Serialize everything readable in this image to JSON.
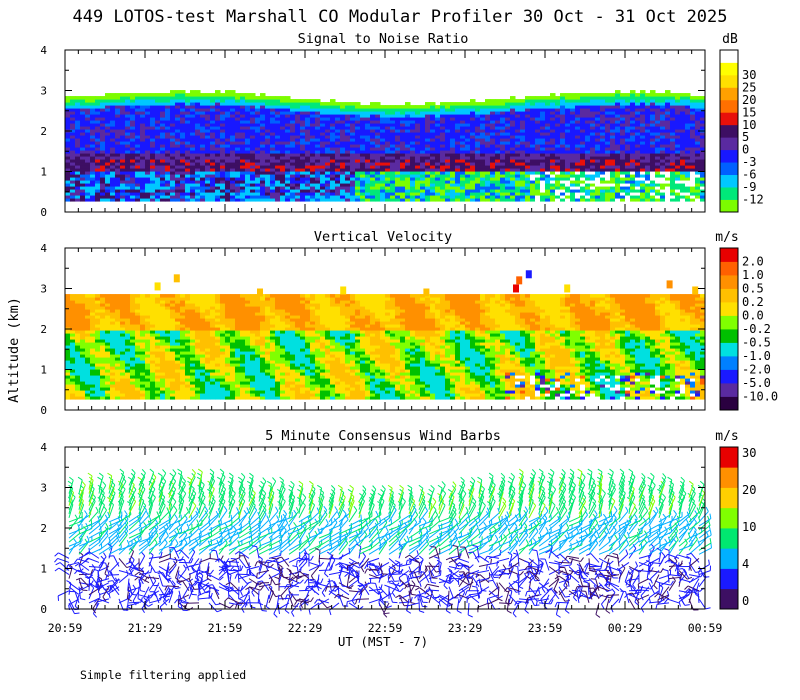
{
  "title": "449 LOTOS-test Marshall CO Modular Profiler 30 Oct - 31 Oct 2025",
  "footnote": "Simple filtering applied",
  "ylabel": "Altitude (km)",
  "xlabel": "UT  (MST - 7)",
  "time_ticks": [
    "20:59",
    "21:29",
    "21:59",
    "22:29",
    "22:59",
    "23:29",
    "23:59",
    "00:29",
    "00:59"
  ],
  "panels": [
    {
      "key": "snr",
      "title": "Signal to Noise Ratio",
      "unit": "dB",
      "yticks": [
        "0",
        "1",
        "2",
        "3",
        "4"
      ],
      "colorbar": {
        "colors": [
          "#7cfc00",
          "#00e87a",
          "#00c8ff",
          "#0060ff",
          "#1818ff",
          "#5a2aa0",
          "#3d0f63",
          "#e8100a",
          "#ff7000",
          "#ffa000",
          "#ffe000",
          "#ffff00",
          "#ffffff"
        ],
        "labels": [
          "-12",
          "-9",
          "-6",
          "-3",
          "0",
          "5",
          "10",
          "15",
          "20",
          "25",
          "30"
        ]
      }
    },
    {
      "key": "vv",
      "title": "Vertical Velocity",
      "unit": "m/s",
      "yticks": [
        "0",
        "1",
        "2",
        "3",
        "4"
      ],
      "colorbar": {
        "colors": [
          "#2a0040",
          "#5a2aa0",
          "#1a1aff",
          "#0080ff",
          "#00e0e0",
          "#00c000",
          "#80ff00",
          "#ffe000",
          "#ffc000",
          "#ff9000",
          "#ff6000",
          "#e80000"
        ],
        "labels": [
          "-10.0",
          "-5.0",
          "-2.0",
          "-1.0",
          "-0.5",
          "-0.2",
          "0.0",
          "0.2",
          "0.5",
          "1.0",
          "2.0"
        ]
      }
    },
    {
      "key": "wind",
      "title": "5 Minute Consensus Wind Barbs",
      "unit": "m/s",
      "yticks": [
        "0",
        "1",
        "2",
        "3",
        "4"
      ],
      "colorbar": {
        "colors": [
          "#3d0f63",
          "#1a1aff",
          "#00b0ff",
          "#00e870",
          "#80ff00",
          "#ffd000",
          "#ff9000",
          "#e80000"
        ],
        "labels": [
          "0",
          "4",
          "10",
          "20",
          "30"
        ]
      }
    }
  ],
  "chart_data": [
    {
      "type": "heatmap",
      "title": "Signal to Noise Ratio",
      "x_range": [
        "20:59",
        "00:59"
      ],
      "ylim": [
        0,
        4
      ],
      "ylabel": "Altitude (km)",
      "colorbar_unit": "dB",
      "colorbar_levels": [
        -12,
        -9,
        -6,
        -3,
        0,
        5,
        10,
        15,
        20,
        25,
        30
      ],
      "data_top_km": [
        2.7,
        3.0
      ],
      "data_bottom_km": 0.25,
      "high_snr_band_km": [
        1.0,
        1.3
      ]
    },
    {
      "type": "heatmap",
      "title": "Vertical Velocity",
      "x_range": [
        "20:59",
        "00:59"
      ],
      "ylim": [
        0,
        4
      ],
      "ylabel": "Altitude (km)",
      "colorbar_unit": "m/s",
      "colorbar_levels": [
        -10.0,
        -5.0,
        -2.0,
        -1.0,
        -0.5,
        -0.2,
        0.0,
        0.2,
        0.5,
        1.0,
        2.0
      ],
      "data_top_km": 2.8,
      "data_bottom_km": 0.25
    },
    {
      "type": "scatter",
      "title": "5 Minute Consensus Wind Barbs",
      "x_range": [
        "20:59",
        "00:59"
      ],
      "ylim": [
        0,
        4
      ],
      "ylabel": "Altitude (km)",
      "xlabel": "UT  (MST - 7)",
      "colorbar_unit": "m/s",
      "colorbar_levels": [
        0,
        4,
        10,
        20,
        30
      ],
      "barb_top_km": [
        2.7,
        3.3
      ],
      "barb_bottom_km": 0.1
    }
  ]
}
